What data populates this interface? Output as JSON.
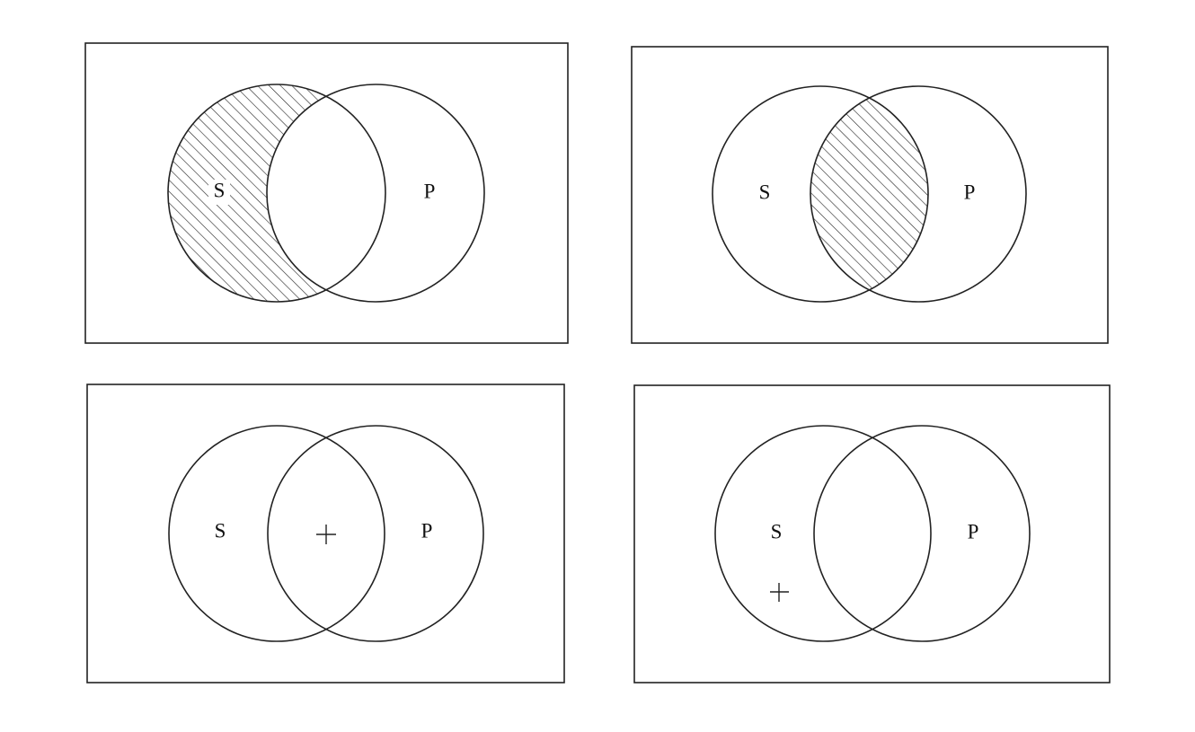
{
  "panels": [
    {
      "labels": [
        "S",
        "P"
      ]
    },
    {
      "labels": [
        "S",
        "P"
      ]
    },
    {
      "labels": [
        "S",
        "P"
      ]
    },
    {
      "labels": [
        "S",
        "P"
      ]
    }
  ]
}
